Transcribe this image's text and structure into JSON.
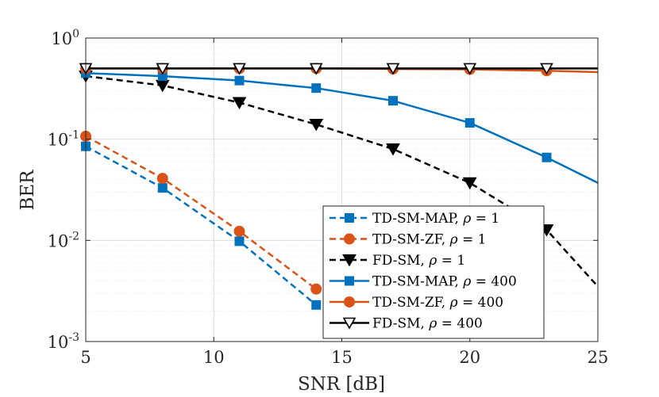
{
  "chart_data": {
    "type": "line",
    "xlabel": "SNR [dB]",
    "ylabel": "BER",
    "xlim": [
      5,
      25
    ],
    "ylim": [
      0.001,
      1
    ],
    "yscale": "log",
    "grid": true,
    "legend_position": "bottom-right",
    "x_ticks": [
      {
        "value": 5,
        "label": "5"
      },
      {
        "value": 10,
        "label": "10"
      },
      {
        "value": 15,
        "label": "15"
      },
      {
        "value": 20,
        "label": "20"
      },
      {
        "value": 25,
        "label": "25"
      }
    ],
    "y_ticks": [
      {
        "value": 0.001,
        "base": "10",
        "exp": "-3"
      },
      {
        "value": 0.01,
        "base": "10",
        "exp": "-2"
      },
      {
        "value": 0.1,
        "base": "10",
        "exp": "-1"
      },
      {
        "value": 1,
        "base": "10",
        "exp": "0"
      }
    ],
    "series": [
      {
        "name": "TD-SM-MAP",
        "rho": "1",
        "color": "#0072BD",
        "dash": "dashed",
        "marker": "square",
        "x": [
          5,
          8,
          11,
          14
        ],
        "y": [
          0.085,
          0.033,
          0.0098,
          0.0023
        ]
      },
      {
        "name": "TD-SM-ZF",
        "rho": "1",
        "color": "#D95319",
        "dash": "dashed",
        "marker": "circle",
        "x": [
          5,
          8,
          11,
          14
        ],
        "y": [
          0.107,
          0.041,
          0.0123,
          0.0033
        ]
      },
      {
        "name": "FD-SM",
        "rho": "1",
        "color": "#000000",
        "dash": "dashed",
        "marker": "triangle-filled",
        "x": [
          5,
          8,
          11,
          14,
          17,
          20,
          23,
          25
        ],
        "y": [
          0.42,
          0.34,
          0.23,
          0.14,
          0.08,
          0.037,
          0.0127,
          0.0035
        ]
      },
      {
        "name": "TD-SM-MAP",
        "rho": "400",
        "color": "#0072BD",
        "dash": "solid",
        "marker": "square",
        "x": [
          5,
          8,
          11,
          14,
          17,
          20,
          23,
          25
        ],
        "y": [
          0.45,
          0.42,
          0.38,
          0.32,
          0.24,
          0.145,
          0.066,
          0.037
        ]
      },
      {
        "name": "TD-SM-ZF",
        "rho": "400",
        "color": "#D95319",
        "dash": "solid",
        "marker": "circle",
        "x": [
          5,
          8,
          11,
          14,
          17,
          20,
          23,
          25
        ],
        "y": [
          0.5,
          0.5,
          0.5,
          0.5,
          0.495,
          0.49,
          0.475,
          0.46
        ]
      },
      {
        "name": "FD-SM",
        "rho": "400",
        "color": "#000000",
        "dash": "solid",
        "marker": "triangle-open",
        "x": [
          5,
          8,
          11,
          14,
          17,
          20,
          23,
          25
        ],
        "y": [
          0.5,
          0.5,
          0.5,
          0.5,
          0.5,
          0.5,
          0.5,
          0.5
        ]
      }
    ]
  }
}
